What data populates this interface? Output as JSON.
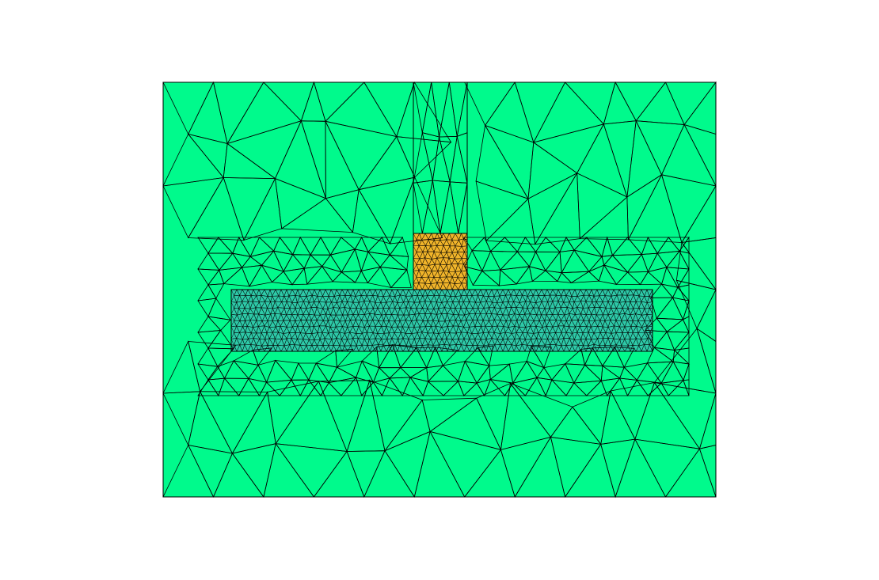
{
  "figure": {
    "background_color": "#ffffff",
    "edge_color": "#000000",
    "regions": [
      {
        "id": "outer-domain",
        "color": "#00fa8c"
      },
      {
        "id": "substrate-layer",
        "color": "#2ec9a8"
      },
      {
        "id": "conductor-block",
        "color": "#f0b42a"
      }
    ]
  }
}
